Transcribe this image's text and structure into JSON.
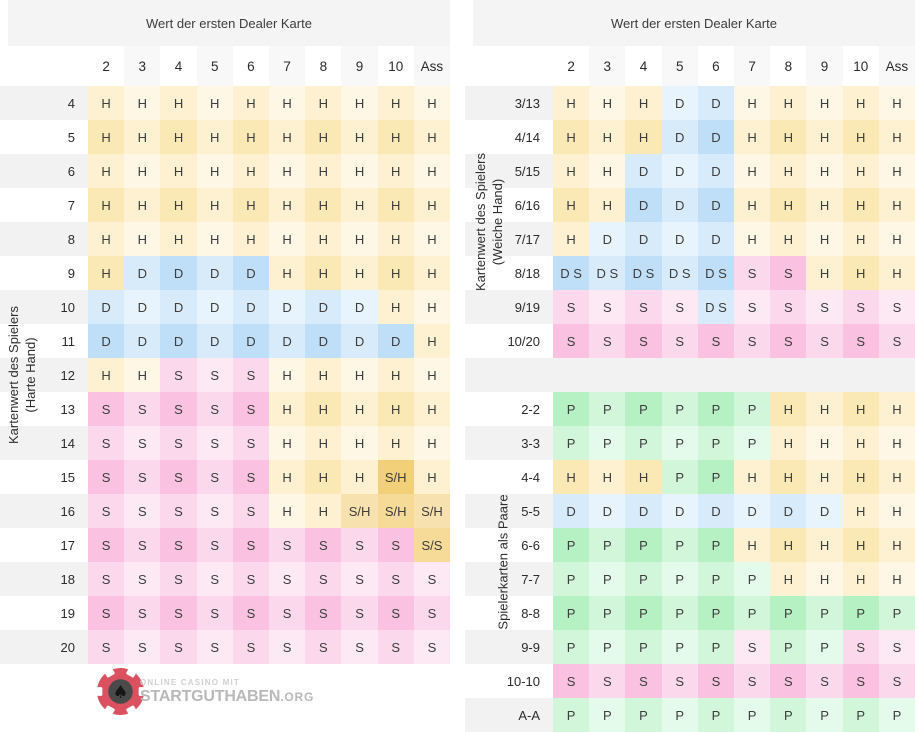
{
  "chart_data": [
    {
      "type": "table",
      "title": "Wert der ersten Dealer Karte",
      "side_label_line1": "Kartenwert des Spielers",
      "side_label_line2": "(Harte Hand)",
      "columns": [
        "2",
        "3",
        "4",
        "5",
        "6",
        "7",
        "8",
        "9",
        "10",
        "Ass"
      ],
      "rows": [
        {
          "label": "4",
          "cells": [
            "H",
            "H",
            "H",
            "H",
            "H",
            "H",
            "H",
            "H",
            "H",
            "H"
          ]
        },
        {
          "label": "5",
          "cells": [
            "H",
            "H",
            "H",
            "H",
            "H",
            "H",
            "H",
            "H",
            "H",
            "H"
          ]
        },
        {
          "label": "6",
          "cells": [
            "H",
            "H",
            "H",
            "H",
            "H",
            "H",
            "H",
            "H",
            "H",
            "H"
          ]
        },
        {
          "label": "7",
          "cells": [
            "H",
            "H",
            "H",
            "H",
            "H",
            "H",
            "H",
            "H",
            "H",
            "H"
          ]
        },
        {
          "label": "8",
          "cells": [
            "H",
            "H",
            "H",
            "H",
            "H",
            "H",
            "H",
            "H",
            "H",
            "H"
          ]
        },
        {
          "label": "9",
          "cells": [
            "H",
            "D",
            "D",
            "D",
            "D",
            "H",
            "H",
            "H",
            "H",
            "H"
          ]
        },
        {
          "label": "10",
          "cells": [
            "D",
            "D",
            "D",
            "D",
            "D",
            "D",
            "D",
            "D",
            "H",
            "H"
          ]
        },
        {
          "label": "11",
          "cells": [
            "D",
            "D",
            "D",
            "D",
            "D",
            "D",
            "D",
            "D",
            "D",
            "H"
          ]
        },
        {
          "label": "12",
          "cells": [
            "H",
            "H",
            "S",
            "S",
            "S",
            "H",
            "H",
            "H",
            "H",
            "H"
          ]
        },
        {
          "label": "13",
          "cells": [
            "S",
            "S",
            "S",
            "S",
            "S",
            "H",
            "H",
            "H",
            "H",
            "H"
          ]
        },
        {
          "label": "14",
          "cells": [
            "S",
            "S",
            "S",
            "S",
            "S",
            "H",
            "H",
            "H",
            "H",
            "H"
          ]
        },
        {
          "label": "15",
          "cells": [
            "S",
            "S",
            "S",
            "S",
            "S",
            "H",
            "H",
            "H",
            "S/H",
            "H"
          ]
        },
        {
          "label": "16",
          "cells": [
            "S",
            "S",
            "S",
            "S",
            "S",
            "H",
            "H",
            "S/H",
            "S/H",
            "S/H"
          ]
        },
        {
          "label": "17",
          "cells": [
            "S",
            "S",
            "S",
            "S",
            "S",
            "S",
            "S",
            "S",
            "S",
            "S/S"
          ]
        },
        {
          "label": "18",
          "cells": [
            "S",
            "S",
            "S",
            "S",
            "S",
            "S",
            "S",
            "S",
            "S",
            "S"
          ]
        },
        {
          "label": "19",
          "cells": [
            "S",
            "S",
            "S",
            "S",
            "S",
            "S",
            "S",
            "S",
            "S",
            "S"
          ]
        },
        {
          "label": "20",
          "cells": [
            "S",
            "S",
            "S",
            "S",
            "S",
            "S",
            "S",
            "S",
            "S",
            "S"
          ]
        }
      ]
    },
    {
      "type": "table",
      "title": "Wert der ersten Dealer Karte",
      "soft_label_line1": "Kartenwert des Spielers",
      "soft_label_line2": "(Weiche Hand)",
      "pairs_label": "Spielerkarten als Paare",
      "columns": [
        "2",
        "3",
        "4",
        "5",
        "6",
        "7",
        "8",
        "9",
        "10",
        "Ass"
      ],
      "soft_rows": [
        {
          "label": "3/13",
          "cells": [
            "H",
            "H",
            "H",
            "D",
            "D",
            "H",
            "H",
            "H",
            "H",
            "H"
          ]
        },
        {
          "label": "4/14",
          "cells": [
            "H",
            "H",
            "H",
            "D",
            "D",
            "H",
            "H",
            "H",
            "H",
            "H"
          ]
        },
        {
          "label": "5/15",
          "cells": [
            "H",
            "H",
            "D",
            "D",
            "D",
            "H",
            "H",
            "H",
            "H",
            "H"
          ]
        },
        {
          "label": "6/16",
          "cells": [
            "H",
            "H",
            "D",
            "D",
            "D",
            "H",
            "H",
            "H",
            "H",
            "H"
          ]
        },
        {
          "label": "7/17",
          "cells": [
            "H",
            "D",
            "D",
            "D",
            "D",
            "H",
            "H",
            "H",
            "H",
            "H"
          ]
        },
        {
          "label": "8/18",
          "cells": [
            "D S",
            "D S",
            "D S",
            "D S",
            "D S",
            "S",
            "S",
            "H",
            "H",
            "H"
          ]
        },
        {
          "label": "9/19",
          "cells": [
            "S",
            "S",
            "S",
            "S",
            "D S",
            "S",
            "S",
            "S",
            "S",
            "S"
          ]
        },
        {
          "label": "10/20",
          "cells": [
            "S",
            "S",
            "S",
            "S",
            "S",
            "S",
            "S",
            "S",
            "S",
            "S"
          ]
        }
      ],
      "pair_rows": [
        {
          "label": "2-2",
          "cells": [
            "P",
            "P",
            "P",
            "P",
            "P",
            "P",
            "H",
            "H",
            "H",
            "H"
          ]
        },
        {
          "label": "3-3",
          "cells": [
            "P",
            "P",
            "P",
            "P",
            "P",
            "P",
            "H",
            "H",
            "H",
            "H"
          ]
        },
        {
          "label": "4-4",
          "cells": [
            "H",
            "H",
            "H",
            "P",
            "P",
            "H",
            "H",
            "H",
            "H",
            "H"
          ]
        },
        {
          "label": "5-5",
          "cells": [
            "D",
            "D",
            "D",
            "D",
            "D",
            "D",
            "D",
            "D",
            "H",
            "H"
          ]
        },
        {
          "label": "6-6",
          "cells": [
            "P",
            "P",
            "P",
            "P",
            "P",
            "H",
            "H",
            "H",
            "H",
            "H"
          ]
        },
        {
          "label": "7-7",
          "cells": [
            "P",
            "P",
            "P",
            "P",
            "P",
            "P",
            "H",
            "H",
            "H",
            "H"
          ]
        },
        {
          "label": "8-8",
          "cells": [
            "P",
            "P",
            "P",
            "P",
            "P",
            "P",
            "P",
            "P",
            "P",
            "P"
          ]
        },
        {
          "label": "9-9",
          "cells": [
            "P",
            "P",
            "P",
            "P",
            "P",
            "S",
            "P",
            "P",
            "S",
            "S"
          ]
        },
        {
          "label": "10-10",
          "cells": [
            "S",
            "S",
            "S",
            "S",
            "S",
            "S",
            "S",
            "S",
            "S",
            "S"
          ]
        },
        {
          "label": "A-A",
          "cells": [
            "P",
            "P",
            "P",
            "P",
            "P",
            "P",
            "P",
            "P",
            "P",
            "P"
          ]
        }
      ]
    }
  ],
  "colors": {
    "hit_yellow": "#F9DB87",
    "double_blue": "#A6D3F6",
    "stand_pink": "#F9A6D3",
    "split_green": "#98EBAC",
    "surrender_amber": "#EFC358",
    "row_stripe": "#F2F2F2",
    "band_bg": "#F4F4F4",
    "logo_red": "#DB5160",
    "logo_gray": "#B9B9B9"
  },
  "logo": {
    "tagline": "ONLINE CASINO MIT",
    "brand": "STARTGUTHABEN",
    "tld": ".ORG"
  }
}
